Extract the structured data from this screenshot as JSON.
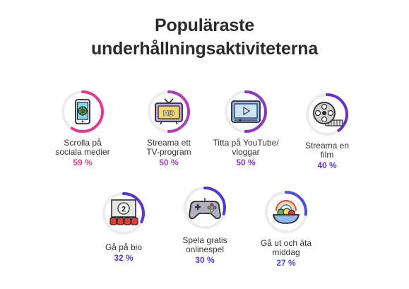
{
  "title": {
    "line1": "Populäraste",
    "line2": "underhållningsaktiviteterna"
  },
  "colors": {
    "pink": "#e5398d",
    "magenta": "#b13cbd",
    "purple": "#6a32c8",
    "indigo": "#4c39d6",
    "blue": "#4a4fe0",
    "track": "#ececec",
    "dark": "#2b2b2b"
  },
  "items": [
    {
      "icon": "smartphone-globe-icon",
      "label_lines": [
        "Scrolla på",
        "sociala medier"
      ],
      "value": "59 %",
      "percent": 59,
      "color": "#e5398d"
    },
    {
      "icon": "hd-tv-icon",
      "label_lines": [
        "Streama ett",
        "TV-program"
      ],
      "value": "50 %",
      "percent": 50,
      "color": "#b13cbd"
    },
    {
      "icon": "video-player-icon",
      "label_lines": [
        "Titta på YouTube/",
        "vloggar"
      ],
      "value": "50 %",
      "percent": 50,
      "color": "#8a36c6"
    },
    {
      "icon": "film-reel-icon",
      "label_lines": [
        "Streama en",
        "film"
      ],
      "value": "40 %",
      "percent": 40,
      "color": "#6a32c8"
    },
    {
      "icon": "cinema-seats-icon",
      "label_lines": [
        "Gå på bio"
      ],
      "value": "32 %",
      "percent": 32,
      "color": "#5a36d0"
    },
    {
      "icon": "gamepad-icon",
      "label_lines": [
        "Spela gratis",
        "onlinespel"
      ],
      "value": "30 %",
      "percent": 30,
      "color": "#4c39d6"
    },
    {
      "icon": "food-bowl-icon",
      "label_lines": [
        "Gå ut och äta",
        "middag"
      ],
      "value": "27 %",
      "percent": 27,
      "color": "#4a4fe0"
    }
  ]
}
